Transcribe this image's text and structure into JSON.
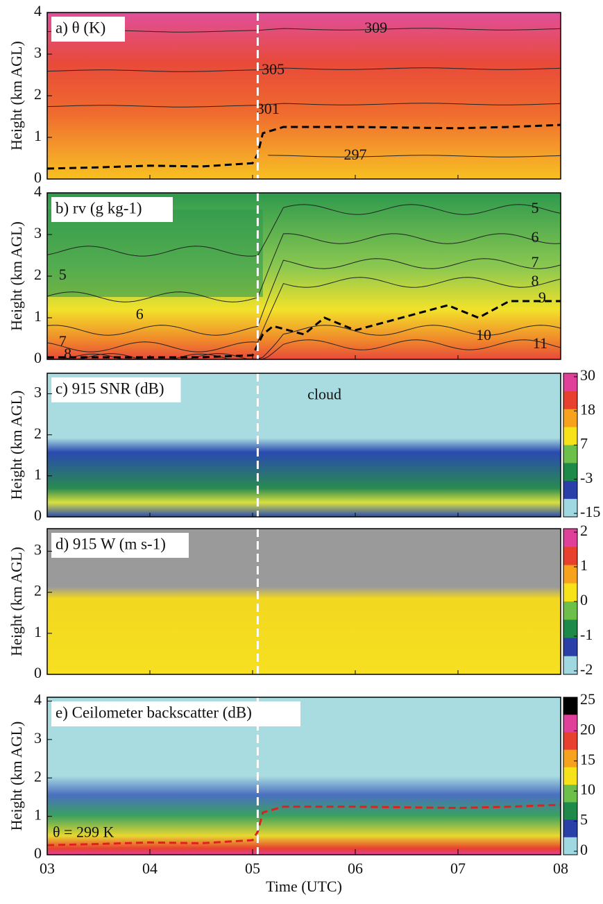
{
  "chart_data": [
    {
      "type": "contour",
      "title": "a) θ (K)",
      "ylabel": "Height (km AGL)",
      "xlim": [
        3,
        8
      ],
      "ylim": [
        0,
        4
      ],
      "yticks": [
        0,
        1,
        2,
        3,
        4
      ],
      "vline": 5.05,
      "contour_levels": [
        297,
        301,
        305,
        309
      ],
      "series": [
        {
          "color": "#000000",
          "x": [
            3,
            3.5,
            4,
            4.5,
            5,
            5.05,
            5.1,
            5.3,
            6,
            7,
            7.5,
            8
          ],
          "y": [
            0.25,
            0.28,
            0.32,
            0.3,
            0.38,
            0.6,
            1.1,
            1.25,
            1.25,
            1.22,
            1.25,
            1.3
          ]
        }
      ]
    },
    {
      "type": "contour",
      "title": "b) rv (g kg-1)",
      "ylabel": "Height (km AGL)",
      "xlim": [
        3,
        8
      ],
      "ylim": [
        0,
        4
      ],
      "yticks": [
        0,
        1,
        2,
        3,
        4
      ],
      "vline": 5.05,
      "contour_levels": [
        5,
        6,
        7,
        8,
        9,
        10,
        11
      ],
      "series": [
        {
          "color": "#000000",
          "x": [
            3,
            3.5,
            4,
            4.5,
            5,
            5.1,
            5.2,
            5.5,
            5.7,
            6,
            6.3,
            6.6,
            6.9,
            7.2,
            7.5,
            8
          ],
          "y": [
            0.05,
            0.05,
            0.05,
            0.05,
            0.1,
            0.6,
            0.8,
            0.6,
            1.0,
            0.7,
            0.9,
            1.1,
            1.3,
            1.0,
            1.4,
            1.4
          ]
        }
      ]
    },
    {
      "type": "heatmap",
      "title": "c) 915 SNR (dB)",
      "ylabel": "Height (km AGL)",
      "xlim": [
        3,
        8
      ],
      "ylim": [
        0,
        3.5
      ],
      "yticks": [
        0,
        1,
        2,
        3
      ],
      "vline": 5.05,
      "annotation": "cloud",
      "colorbar_ticks": [
        30,
        18,
        7,
        -3,
        -15
      ],
      "colorbar_colors": [
        "#e0409a",
        "#e8402e",
        "#f7a21c",
        "#f7e21a",
        "#6cc04a",
        "#1d8a4a",
        "#2a3fa8",
        "#9fd8e0"
      ]
    },
    {
      "type": "heatmap",
      "title": "d) 915 W (m s-1)",
      "ylabel": "Height (km AGL)",
      "xlim": [
        3,
        8
      ],
      "ylim": [
        0,
        3.55
      ],
      "yticks": [
        0,
        1,
        2,
        3
      ],
      "vline": 5.05,
      "colorbar_ticks": [
        2,
        1,
        0,
        -1,
        -2
      ],
      "colorbar_colors": [
        "#e0409a",
        "#e8402e",
        "#f7a21c",
        "#f7e21a",
        "#6cc04a",
        "#1d8a4a",
        "#2a3fa8",
        "#9fd8e0"
      ]
    },
    {
      "type": "heatmap",
      "title": "e) Ceilometer backscatter (dB)",
      "ylabel": "Height (km AGL)",
      "xlabel": "Time (UTC)",
      "xlim": [
        3,
        8
      ],
      "ylim": [
        0,
        4.1
      ],
      "yticks": [
        0,
        1,
        2,
        3,
        4
      ],
      "vline": 5.05,
      "xticks": [
        {
          "value": 3,
          "label": "03"
        },
        {
          "value": 4,
          "label": "04"
        },
        {
          "value": 5,
          "label": "05"
        },
        {
          "value": 6,
          "label": "06"
        },
        {
          "value": 7,
          "label": "07"
        },
        {
          "value": 8,
          "label": "08"
        }
      ],
      "colorbar_ticks": [
        25,
        20,
        15,
        10,
        5,
        0
      ],
      "colorbar_colors": [
        "#000000",
        "#e0409a",
        "#e8402e",
        "#f7a21c",
        "#f7e21a",
        "#6cc04a",
        "#1d8a4a",
        "#2a3fa8",
        "#9fd8e0"
      ],
      "series": [
        {
          "name": "θ = 299 K",
          "color": "#e02020",
          "x": [
            3,
            3.5,
            4,
            4.5,
            5,
            5.05,
            5.1,
            5.3,
            6,
            7,
            7.5,
            8
          ],
          "y": [
            0.25,
            0.28,
            0.32,
            0.3,
            0.38,
            0.6,
            1.1,
            1.25,
            1.25,
            1.22,
            1.25,
            1.3
          ]
        }
      ]
    }
  ]
}
